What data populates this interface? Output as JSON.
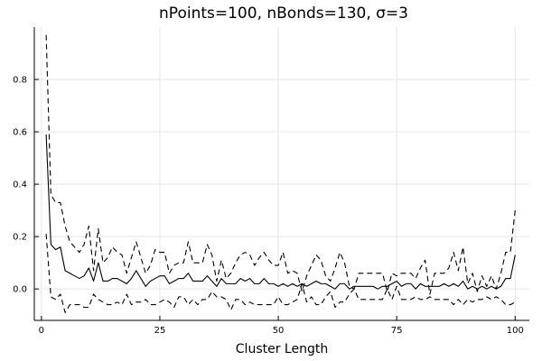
{
  "chart_data": {
    "type": "line",
    "title": "nPoints=100, nBonds=130, σ=3",
    "xlabel": "Cluster Length",
    "ylabel": "",
    "xlim": [
      -1.5,
      103
    ],
    "ylim": [
      -0.12,
      1.0
    ],
    "xticks": [
      0,
      25,
      50,
      75,
      100
    ],
    "yticks": [
      0.0,
      0.2,
      0.4,
      0.6,
      0.8
    ],
    "grid": true,
    "legend": "none",
    "x": [
      1,
      2,
      3,
      4,
      5,
      6,
      7,
      8,
      9,
      10,
      11,
      12,
      13,
      14,
      15,
      16,
      17,
      18,
      19,
      20,
      21,
      22,
      23,
      24,
      25,
      26,
      27,
      28,
      29,
      30,
      31,
      32,
      33,
      34,
      35,
      36,
      37,
      38,
      39,
      40,
      41,
      42,
      43,
      44,
      45,
      46,
      47,
      48,
      49,
      50,
      51,
      52,
      53,
      54,
      55,
      56,
      57,
      58,
      59,
      60,
      61,
      62,
      63,
      64,
      65,
      66,
      67,
      68,
      69,
      70,
      71,
      72,
      73,
      74,
      75,
      76,
      77,
      78,
      79,
      80,
      81,
      82,
      83,
      84,
      85,
      86,
      87,
      88,
      89,
      90,
      91,
      92,
      93,
      94,
      95,
      96,
      97,
      98,
      99,
      100
    ],
    "series": [
      {
        "style": "dashed",
        "color": "#000000",
        "values": [
          0.97,
          0.36,
          0.33,
          0.33,
          0.24,
          0.18,
          0.16,
          0.14,
          0.17,
          0.24,
          0.07,
          0.23,
          0.1,
          0.12,
          0.16,
          0.14,
          0.13,
          0.06,
          0.12,
          0.18,
          0.12,
          0.06,
          0.09,
          0.15,
          0.14,
          0.14,
          0.06,
          0.09,
          0.1,
          0.1,
          0.18,
          0.1,
          0.1,
          0.1,
          0.17,
          0.13,
          0.03,
          0.11,
          0.04,
          0.06,
          0.1,
          0.13,
          0.14,
          0.13,
          0.09,
          0.12,
          0.14,
          0.11,
          0.09,
          0.09,
          0.14,
          0.06,
          0.07,
          0.06,
          -0.01,
          0.05,
          0.09,
          0.13,
          0.11,
          0.05,
          0.03,
          0.08,
          0.14,
          0.1,
          0.01,
          0.0,
          0.06,
          0.06,
          0.06,
          0.06,
          0.06,
          0.06,
          -0.01,
          0.06,
          0.05,
          0.06,
          0.06,
          0.06,
          0.04,
          0.08,
          0.11,
          -0.02,
          0.06,
          0.06,
          0.06,
          0.08,
          0.14,
          0.07,
          0.16,
          0.02,
          0.06,
          -0.01,
          0.05,
          0.01,
          0.05,
          0.0,
          0.06,
          0.14,
          0.14,
          0.3
        ]
      },
      {
        "style": "solid",
        "color": "#000000",
        "values": [
          0.59,
          0.17,
          0.15,
          0.16,
          0.07,
          0.06,
          0.05,
          0.04,
          0.05,
          0.08,
          0.03,
          0.1,
          0.03,
          0.03,
          0.04,
          0.04,
          0.03,
          0.02,
          0.04,
          0.07,
          0.04,
          0.01,
          0.03,
          0.04,
          0.05,
          0.05,
          0.02,
          0.03,
          0.04,
          0.04,
          0.06,
          0.03,
          0.03,
          0.03,
          0.05,
          0.03,
          0.01,
          0.04,
          0.02,
          0.02,
          0.02,
          0.04,
          0.03,
          0.04,
          0.02,
          0.02,
          0.04,
          0.02,
          0.02,
          0.01,
          0.02,
          0.01,
          0.02,
          0.01,
          0.02,
          0.01,
          0.02,
          0.03,
          0.02,
          0.02,
          0.01,
          0.0,
          0.02,
          0.02,
          0.0,
          0.01,
          0.01,
          0.01,
          0.01,
          0.01,
          0.0,
          0.01,
          0.01,
          0.02,
          0.03,
          0.01,
          0.02,
          0.02,
          0.0,
          0.02,
          0.01,
          0.01,
          0.01,
          0.01,
          0.02,
          0.01,
          0.02,
          0.01,
          0.03,
          0.0,
          0.01,
          0.0,
          0.01,
          0.0,
          0.01,
          0.0,
          0.01,
          0.04,
          0.04,
          0.13
        ]
      },
      {
        "style": "dashed",
        "color": "#000000",
        "values": [
          0.21,
          -0.03,
          -0.04,
          -0.02,
          -0.09,
          -0.06,
          -0.06,
          -0.06,
          -0.07,
          -0.07,
          -0.02,
          -0.04,
          -0.05,
          -0.06,
          -0.06,
          -0.05,
          -0.06,
          -0.02,
          -0.06,
          -0.05,
          -0.05,
          -0.04,
          -0.06,
          -0.06,
          -0.05,
          -0.04,
          -0.05,
          -0.07,
          -0.03,
          -0.03,
          -0.06,
          -0.04,
          -0.06,
          -0.04,
          -0.04,
          -0.01,
          -0.03,
          -0.03,
          -0.04,
          -0.08,
          -0.04,
          -0.04,
          -0.06,
          -0.05,
          -0.06,
          -0.06,
          -0.06,
          -0.06,
          -0.06,
          -0.03,
          -0.06,
          -0.06,
          -0.05,
          -0.04,
          0.02,
          -0.05,
          -0.03,
          -0.06,
          -0.06,
          -0.03,
          -0.01,
          -0.07,
          -0.05,
          -0.05,
          -0.02,
          0.0,
          -0.04,
          -0.04,
          -0.04,
          -0.04,
          -0.04,
          -0.04,
          0.0,
          -0.04,
          0.01,
          -0.04,
          -0.04,
          -0.04,
          -0.03,
          -0.04,
          -0.04,
          -0.03,
          -0.04,
          -0.04,
          -0.04,
          -0.04,
          -0.06,
          -0.04,
          -0.06,
          -0.04,
          -0.05,
          -0.04,
          -0.04,
          -0.03,
          -0.04,
          -0.03,
          -0.04,
          -0.06,
          -0.06,
          -0.05
        ]
      }
    ]
  }
}
